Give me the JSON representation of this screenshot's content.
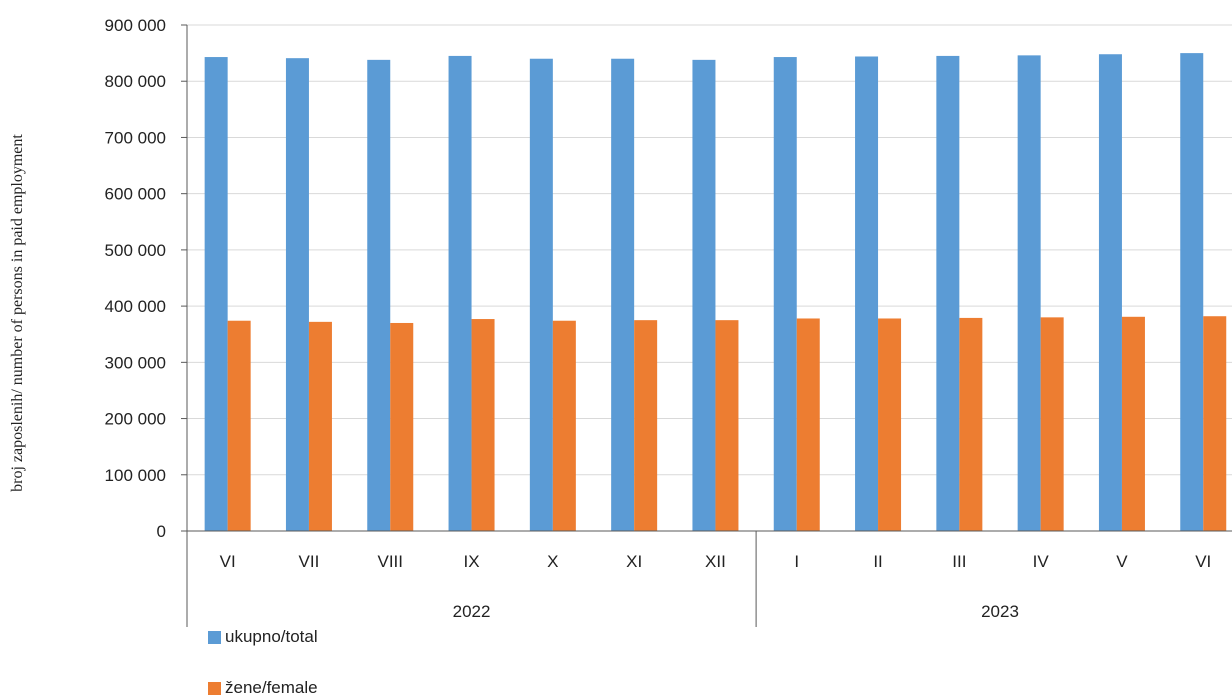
{
  "chart_data": {
    "type": "bar",
    "categories": [
      "VI",
      "VII",
      "VIII",
      "IX",
      "X",
      "XI",
      "XII",
      "I",
      "II",
      "III",
      "IV",
      "V",
      "VI"
    ],
    "groups": [
      {
        "label": "2022",
        "count": 7
      },
      {
        "label": "2023",
        "count": 6
      }
    ],
    "series": [
      {
        "name": "ukupno/total",
        "color": "#5b9bd5",
        "values": [
          843000,
          841000,
          838000,
          845000,
          840000,
          840000,
          838000,
          843000,
          844000,
          845000,
          846000,
          848000,
          850000
        ]
      },
      {
        "name": "žene/female",
        "color": "#ed7d31",
        "values": [
          374000,
          372000,
          370000,
          377000,
          374000,
          375000,
          375000,
          378000,
          378000,
          379000,
          380000,
          381000,
          382000
        ]
      }
    ],
    "ylabel": "broj zaposlenih/ number of  persons  in paid employment",
    "ylim": [
      0,
      900000
    ],
    "yticks": [
      {
        "value": 0,
        "label": "0"
      },
      {
        "value": 100000,
        "label": "100 000"
      },
      {
        "value": 200000,
        "label": "200 000"
      },
      {
        "value": 300000,
        "label": "300 000"
      },
      {
        "value": 400000,
        "label": "400 000"
      },
      {
        "value": 500000,
        "label": "500 000"
      },
      {
        "value": 600000,
        "label": "600 000"
      },
      {
        "value": 700000,
        "label": "700 000"
      },
      {
        "value": 800000,
        "label": "800 000"
      },
      {
        "value": 900000,
        "label": "900 000"
      }
    ],
    "grid": true,
    "legend": "bottom-left"
  }
}
